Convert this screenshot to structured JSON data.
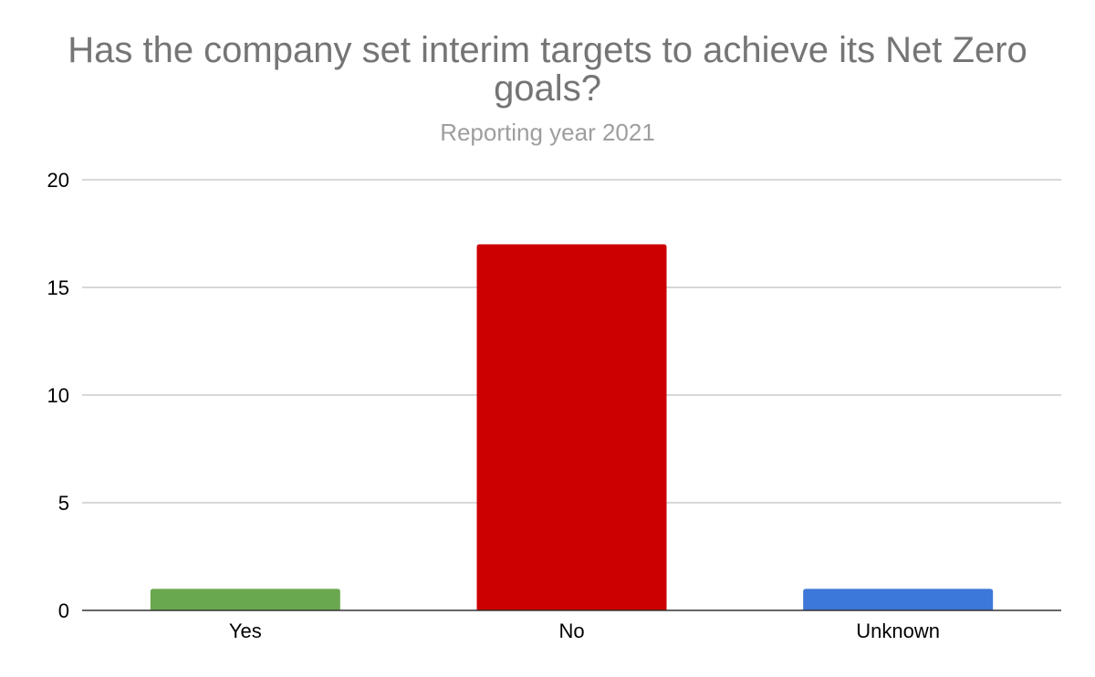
{
  "chart_data": {
    "type": "bar",
    "title": "Has the company set interim targets to achieve its Net Zero goals?",
    "subtitle": "Reporting year 2021",
    "categories": [
      "Yes",
      "No",
      "Unknown"
    ],
    "values": [
      1,
      17,
      1
    ],
    "colors": [
      "#6aa84f",
      "#cc0000",
      "#3c78d8"
    ],
    "yticks": [
      0,
      5,
      10,
      15,
      20
    ],
    "ylim": [
      0,
      20
    ],
    "grid": true,
    "legend": "none",
    "gridColor": "#cccccc",
    "axisColor": "#333333"
  }
}
